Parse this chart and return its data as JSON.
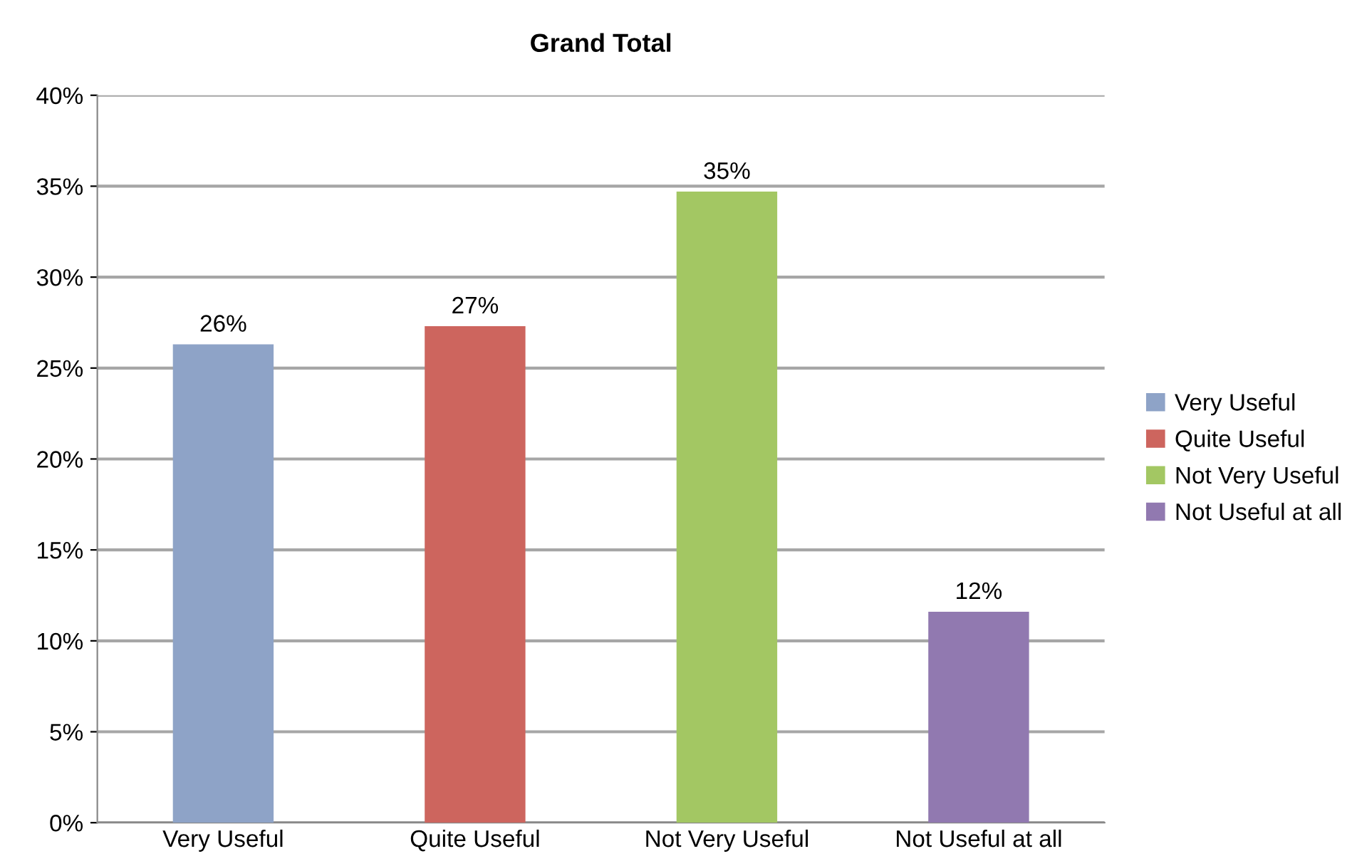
{
  "chart_data": {
    "type": "bar",
    "title": "Grand Total",
    "categories": [
      "Very Useful",
      "Quite Useful",
      "Not Very Useful",
      "Not Useful at all"
    ],
    "series": [
      {
        "name": "Very Useful",
        "color": "#8ea3c7",
        "values": [
          26.3,
          null,
          null,
          null
        ],
        "value_labels": [
          "26%",
          null,
          null,
          null
        ]
      },
      {
        "name": "Quite Useful",
        "color": "#cd655e",
        "values": [
          null,
          27.3,
          null,
          null
        ],
        "value_labels": [
          null,
          "27%",
          null,
          null
        ]
      },
      {
        "name": "Not Very Useful",
        "color": "#a3c763",
        "values": [
          null,
          null,
          34.7,
          null
        ],
        "value_labels": [
          null,
          null,
          "35%",
          null
        ]
      },
      {
        "name": "Not Useful at all",
        "color": "#9179b0",
        "values": [
          null,
          null,
          null,
          11.6
        ],
        "value_labels": [
          null,
          null,
          null,
          "12%"
        ]
      }
    ],
    "ylim": [
      0,
      40
    ],
    "yticks": [
      {
        "value": 0,
        "label": "0%"
      },
      {
        "value": 5,
        "label": "5%"
      },
      {
        "value": 10,
        "label": "10%"
      },
      {
        "value": 15,
        "label": "15%"
      },
      {
        "value": 20,
        "label": "20%"
      },
      {
        "value": 25,
        "label": "25%"
      },
      {
        "value": 30,
        "label": "30%"
      },
      {
        "value": 35,
        "label": "35%"
      },
      {
        "value": 40,
        "label": "40%"
      }
    ],
    "grid": "y",
    "legend": "right"
  }
}
